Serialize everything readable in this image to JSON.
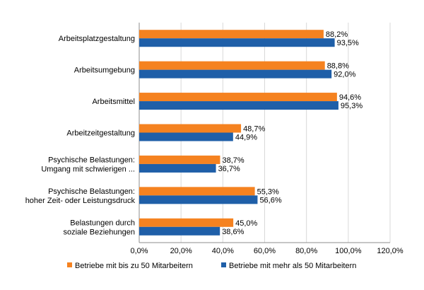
{
  "chart_data": {
    "type": "bar",
    "orientation": "horizontal",
    "categories": [
      [
        "Arbeitsplatzgestaltung"
      ],
      [
        "Arbeitsumgebung"
      ],
      [
        "Arbeitsmittel"
      ],
      [
        "Arbeitzeitgestaltung"
      ],
      [
        "Psychische Belastungen:",
        "Umgang mit schwierigen ..."
      ],
      [
        "Psychische Belastungen:",
        "hoher Zeit- oder Leistungsdruck"
      ],
      [
        "Belastungen durch",
        "soziale Beziehungen"
      ]
    ],
    "series": [
      {
        "name": "Betriebe mit bis zu 50 Mitarbeitern",
        "color": "#f58220",
        "values": [
          88.2,
          88.8,
          94.6,
          48.7,
          38.7,
          55.3,
          45.0
        ],
        "labels": [
          "88,2%",
          "88,8%",
          "94,6%",
          "48,7%",
          "38,7%",
          "55,3%",
          "45,0%"
        ]
      },
      {
        "name": "Betriebe mit mehr als 50 Mitarbeitern",
        "color": "#1f5fa8",
        "values": [
          93.5,
          92.0,
          95.3,
          44.9,
          36.7,
          56.6,
          38.6
        ],
        "labels": [
          "93,5%",
          "92,0%",
          "95,3%",
          "44,9%",
          "36,7%",
          "56,6%",
          "38,6%"
        ]
      }
    ],
    "xlim": [
      0,
      120
    ],
    "ticks": [
      0,
      20,
      40,
      60,
      80,
      100,
      120
    ],
    "tick_labels": [
      "0,0%",
      "20,0%",
      "40,0%",
      "60,0%",
      "80,0%",
      "100,0%",
      "120,0%"
    ],
    "grid": true,
    "legend_position": "bottom",
    "title": "",
    "xlabel": "",
    "ylabel": ""
  }
}
